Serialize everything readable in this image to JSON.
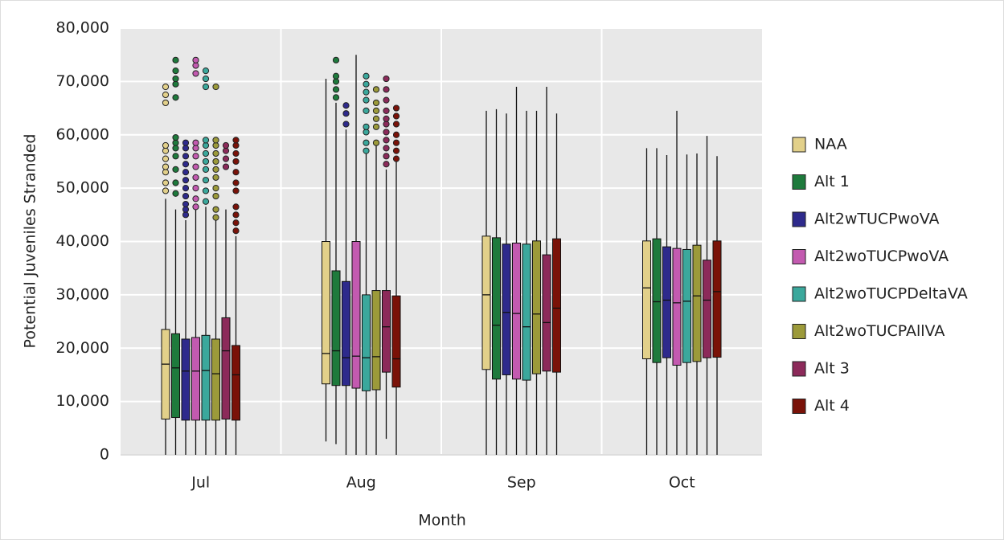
{
  "chart_data": {
    "type": "box",
    "x_label": "Month",
    "y_label": "Potential Juveniles Stranded",
    "categories": [
      "Jul",
      "Aug",
      "Sep",
      "Oct"
    ],
    "ylim": [
      0,
      80000
    ],
    "yticks": [
      {
        "value": 0,
        "label": "0"
      },
      {
        "value": 10000,
        "label": "10,000"
      },
      {
        "value": 20000,
        "label": "20,000"
      },
      {
        "value": 30000,
        "label": "30,000"
      },
      {
        "value": 40000,
        "label": "40,000"
      },
      {
        "value": 50000,
        "label": "50,000"
      },
      {
        "value": 60000,
        "label": "60,000"
      },
      {
        "value": 70000,
        "label": "70,000"
      },
      {
        "value": 80000,
        "label": "80,000"
      }
    ],
    "grid": true,
    "legend": "right",
    "series": [
      {
        "name": "NAA",
        "color": "#e2d08a",
        "min": [
          0,
          2500,
          0,
          0
        ],
        "q1": [
          6700,
          13300,
          16000,
          18000
        ],
        "median": [
          17000,
          19000,
          30000,
          31300
        ],
        "q3": [
          23500,
          40000,
          41000,
          40100
        ],
        "max": [
          48000,
          70500,
          64500,
          57500
        ],
        "outliers": [
          [
            49500,
            51000,
            53000,
            54000,
            55500,
            57000,
            58000,
            66000,
            67500,
            69000
          ],
          [],
          [],
          []
        ]
      },
      {
        "name": "Alt 1",
        "color": "#1e7a3c",
        "min": [
          0,
          2000,
          0,
          0
        ],
        "q1": [
          7000,
          13000,
          14200,
          17300
        ],
        "median": [
          16300,
          19500,
          24300,
          28700
        ],
        "q3": [
          22700,
          34500,
          40700,
          40500
        ],
        "max": [
          46000,
          66000,
          64800,
          57500
        ],
        "outliers": [
          [
            49000,
            51000,
            53500,
            56000,
            57500,
            58500,
            59500,
            67000,
            69500,
            70500,
            72000,
            74000
          ],
          [
            67000,
            68500,
            70000,
            71000,
            74000
          ],
          [],
          []
        ]
      },
      {
        "name": "Alt2wTUCPwoVA",
        "color": "#2e2a8c",
        "min": [
          0,
          0,
          0,
          0
        ],
        "q1": [
          6500,
          13000,
          15000,
          18200
        ],
        "median": [
          15700,
          18200,
          26700,
          29000
        ],
        "q3": [
          21700,
          32500,
          39500,
          39000
        ],
        "max": [
          44000,
          61000,
          64000,
          56200
        ],
        "outliers": [
          [
            45000,
            46000,
            47000,
            48500,
            50000,
            51500,
            53000,
            54500,
            56000,
            57500,
            58500
          ],
          [
            62000,
            64000,
            65500
          ],
          [],
          []
        ]
      },
      {
        "name": "Alt2woTUCPwoVA",
        "color": "#c35ab0",
        "min": [
          0,
          0,
          0,
          0
        ],
        "q1": [
          6500,
          12500,
          14200,
          16800
        ],
        "median": [
          15700,
          18500,
          26500,
          28500
        ],
        "q3": [
          22000,
          40000,
          39700,
          38700
        ],
        "max": [
          46000,
          75000,
          69000,
          64500
        ],
        "outliers": [
          [
            46500,
            48000,
            50000,
            52000,
            54000,
            56000,
            57500,
            58500,
            71500,
            73000,
            74000
          ],
          [],
          [],
          []
        ]
      },
      {
        "name": "Alt2woTUCPDeltaVA",
        "color": "#3ba89c",
        "min": [
          0,
          0,
          0,
          0
        ],
        "q1": [
          6500,
          12000,
          14000,
          17300
        ],
        "median": [
          15800,
          18200,
          24000,
          28800
        ],
        "q3": [
          22400,
          30000,
          39500,
          38500
        ],
        "max": [
          46500,
          56500,
          64500,
          56300
        ],
        "outliers": [
          [
            47500,
            49500,
            51500,
            53500,
            55000,
            56500,
            58000,
            59000,
            69000,
            70500,
            72000
          ],
          [
            57000,
            58500,
            60500,
            61500,
            64500,
            66500,
            68000,
            69500,
            71000
          ],
          [],
          []
        ]
      },
      {
        "name": "Alt2woTUCPAllVA",
        "color": "#9c9a3a",
        "min": [
          0,
          0,
          0,
          0
        ],
        "q1": [
          6500,
          12200,
          15200,
          17500
        ],
        "median": [
          15200,
          18400,
          26400,
          29800
        ],
        "q3": [
          21700,
          30800,
          40100,
          39300
        ],
        "max": [
          44000,
          58000,
          64500,
          56500
        ],
        "outliers": [
          [
            44500,
            46000,
            48500,
            50000,
            52000,
            53500,
            55000,
            56500,
            58000,
            59000,
            69000
          ],
          [
            58500,
            61500,
            63000,
            64500,
            66000,
            68500
          ],
          [],
          []
        ]
      },
      {
        "name": "Alt 3",
        "color": "#8c2a5a",
        "min": [
          0,
          3000,
          0,
          0
        ],
        "q1": [
          6700,
          15500,
          15700,
          18200
        ],
        "median": [
          19500,
          24000,
          24800,
          29000
        ],
        "q3": [
          25700,
          30800,
          37500,
          36500
        ],
        "max": [
          46000,
          53500,
          69000,
          59800
        ],
        "outliers": [
          [
            54000,
            55500,
            57000,
            58000
          ],
          [
            54500,
            56000,
            57500,
            59000,
            60500,
            62000,
            63000,
            64500,
            66500,
            68500,
            70500
          ],
          [],
          []
        ]
      },
      {
        "name": "Alt 4",
        "color": "#7a1208",
        "min": [
          0,
          0,
          0,
          0
        ],
        "q1": [
          6500,
          12700,
          15500,
          18300
        ],
        "median": [
          15000,
          18000,
          27500,
          30600
        ],
        "q3": [
          20500,
          29800,
          40500,
          40100
        ],
        "max": [
          41000,
          55000,
          64000,
          56000
        ],
        "outliers": [
          [
            42000,
            43500,
            45000,
            46500,
            49500,
            51000,
            53000,
            55000,
            56500,
            58000,
            59000
          ],
          [
            55500,
            57000,
            58500,
            60000,
            62000,
            63500,
            65000
          ],
          [],
          []
        ]
      }
    ]
  }
}
